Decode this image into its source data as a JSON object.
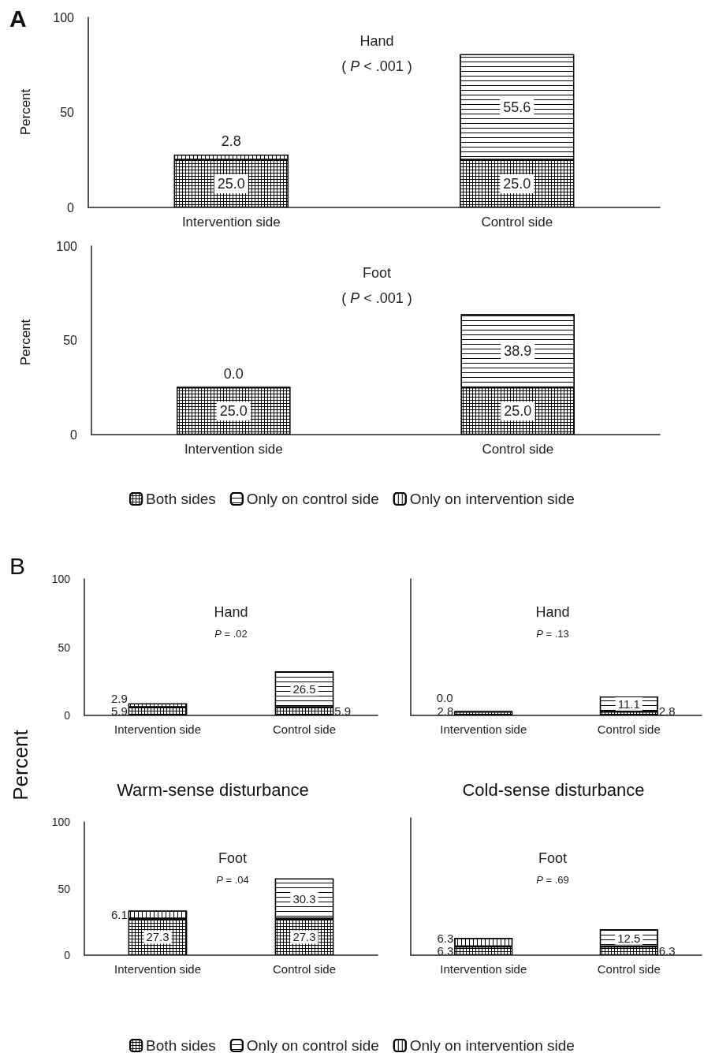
{
  "chart_data": [
    {
      "type": "bar",
      "stacked": true,
      "title": "Hand",
      "subtitle": "( P < .001 )",
      "ylabel": "Percent",
      "annotations": [
        "A"
      ],
      "categories": [
        "Intervention side",
        "Control side"
      ],
      "ylim": [
        0,
        100
      ],
      "yticks": [
        0,
        50,
        100
      ],
      "series": [
        {
          "color": "#000000",
          "values": [
            25.0,
            25.0
          ],
          "value_labels": [
            "25.0",
            "25.0"
          ]
        },
        {
          "color": "#000000",
          "values": [
            null,
            55.6
          ],
          "value_labels": [
            null,
            "55.6"
          ]
        },
        {
          "color": "#000000",
          "values": [
            2.8,
            null
          ],
          "value_labels": [
            "2.8",
            null
          ]
        }
      ]
    },
    {
      "type": "bar",
      "stacked": true,
      "title": "Foot",
      "subtitle": "( P < .001 )",
      "ylabel": "Percent",
      "legend": "bottom",
      "categories": [
        "Intervention side",
        "Control side"
      ],
      "ylim": [
        0,
        100
      ],
      "yticks": [
        0,
        50,
        100
      ],
      "series": [
        {
          "name": "Both sides",
          "color": "#000000",
          "values": [
            25.0,
            25.0
          ],
          "value_labels": [
            "25.0",
            "25.0"
          ]
        },
        {
          "name": "Only on control side",
          "color": "#000000",
          "values": [
            null,
            38.9
          ],
          "value_labels": [
            null,
            "38.9"
          ]
        },
        {
          "name": "Only on intervention side",
          "color": "#000000",
          "values": [
            0.0,
            null
          ],
          "value_labels": [
            "0.0",
            null
          ]
        }
      ]
    },
    {
      "type": "bar",
      "stacked": true,
      "title": "Hand",
      "subtitle": "P = .02",
      "ylabel": "Percent",
      "annotations": [
        "B",
        "Warm-sense disturbance"
      ],
      "categories": [
        "Intervention side",
        "Control side"
      ],
      "ylim": [
        0,
        100
      ],
      "yticks": [
        0,
        50,
        100
      ],
      "series": [
        {
          "color": "#000000",
          "values": [
            5.9,
            5.9
          ],
          "value_labels": [
            "5.9",
            "5.9"
          ]
        },
        {
          "color": "#000000",
          "values": [
            null,
            26.5
          ],
          "value_labels": [
            null,
            "26.5"
          ]
        },
        {
          "color": "#000000",
          "values": [
            2.9,
            null
          ],
          "value_labels": [
            "2.9",
            null
          ]
        }
      ]
    },
    {
      "type": "bar",
      "stacked": true,
      "title": "Hand",
      "subtitle": "P = .13",
      "annotations": [
        "Cold-sense disturbance"
      ],
      "tick_labels": "x",
      "categories": [
        "Intervention side",
        "Control side"
      ],
      "ylim": [
        0,
        100
      ],
      "yticks": [
        0,
        50,
        100
      ],
      "series": [
        {
          "color": "#000000",
          "values": [
            2.8,
            2.8
          ],
          "value_labels": [
            "2.8",
            "2.8"
          ]
        },
        {
          "color": "#000000",
          "values": [
            null,
            11.1
          ],
          "value_labels": [
            null,
            "11.1"
          ]
        },
        {
          "color": "#000000",
          "values": [
            0.0,
            null
          ],
          "value_labels": [
            "0.0",
            null
          ]
        }
      ]
    },
    {
      "type": "bar",
      "stacked": true,
      "title": "Foot",
      "subtitle": "P = .04",
      "legend": "bottom",
      "categories": [
        "Intervention side",
        "Control side"
      ],
      "ylim": [
        0,
        100
      ],
      "yticks": [
        0,
        50,
        100
      ],
      "series": [
        {
          "name": "Both sides",
          "color": "#000000",
          "values": [
            27.3,
            27.3
          ],
          "value_labels": [
            "27.3",
            "27.3"
          ]
        },
        {
          "name": "Only on control side",
          "color": "#000000",
          "values": [
            null,
            30.3
          ],
          "value_labels": [
            null,
            "30.3"
          ]
        },
        {
          "name": "Only on intervention side",
          "color": "#000000",
          "values": [
            6.1,
            null
          ],
          "value_labels": [
            "6.1",
            null
          ]
        }
      ]
    },
    {
      "type": "bar",
      "stacked": true,
      "title": "Foot",
      "subtitle": "P = .69",
      "tick_labels": "x",
      "categories": [
        "Intervention side",
        "Control side"
      ],
      "ylim": [
        0,
        100
      ],
      "yticks": [
        0,
        50,
        100
      ],
      "series": [
        {
          "color": "#000000",
          "values": [
            6.3,
            6.3
          ],
          "value_labels": [
            "6.3",
            "6.3"
          ]
        },
        {
          "color": "#000000",
          "values": [
            null,
            12.5
          ],
          "value_labels": [
            null,
            "12.5"
          ]
        },
        {
          "color": "#000000",
          "values": [
            6.3,
            null
          ],
          "value_labels": [
            "6.3",
            null
          ]
        }
      ]
    }
  ]
}
